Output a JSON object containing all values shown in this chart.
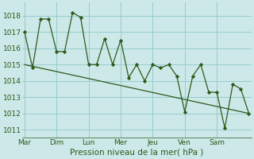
{
  "xlabel": "Pression niveau de la mer( hPa )",
  "bg_color": "#cce8e8",
  "grid_color": "#99cccc",
  "line_color": "#2d5a1b",
  "ylim": [
    1010.5,
    1018.8
  ],
  "yticks": [
    1011,
    1012,
    1013,
    1014,
    1015,
    1016,
    1017,
    1018
  ],
  "day_labels": [
    "Mar",
    "Dim",
    "Lun",
    "Mer",
    "Jeu",
    "Ven",
    "Sam"
  ],
  "day_tick_positions": [
    0,
    4,
    8,
    12,
    16,
    20,
    24
  ],
  "xlim": [
    -0.3,
    28.3
  ],
  "series1_x": [
    0,
    1,
    2,
    3,
    4,
    5,
    6,
    7,
    8,
    9,
    10,
    11,
    12,
    13,
    14,
    15,
    16,
    17,
    18,
    19,
    20,
    21,
    22,
    23,
    24,
    25,
    26,
    27,
    28
  ],
  "series1_y": [
    1017.0,
    1014.8,
    1017.8,
    1017.8,
    1015.8,
    1015.8,
    1018.2,
    1017.9,
    1015.0,
    1015.0,
    1016.6,
    1015.0,
    1016.5,
    1014.2,
    1015.0,
    1014.0,
    1015.0,
    1014.8,
    1015.0,
    1014.3,
    1012.1,
    1014.3,
    1015.0,
    1013.3,
    1013.3,
    1011.1,
    1013.8,
    1013.5,
    1012.0
  ],
  "series2_x": [
    0,
    28
  ],
  "series2_y": [
    1015.0,
    1012.0
  ],
  "tick_fontsize": 6.5,
  "xlabel_fontsize": 7.5
}
